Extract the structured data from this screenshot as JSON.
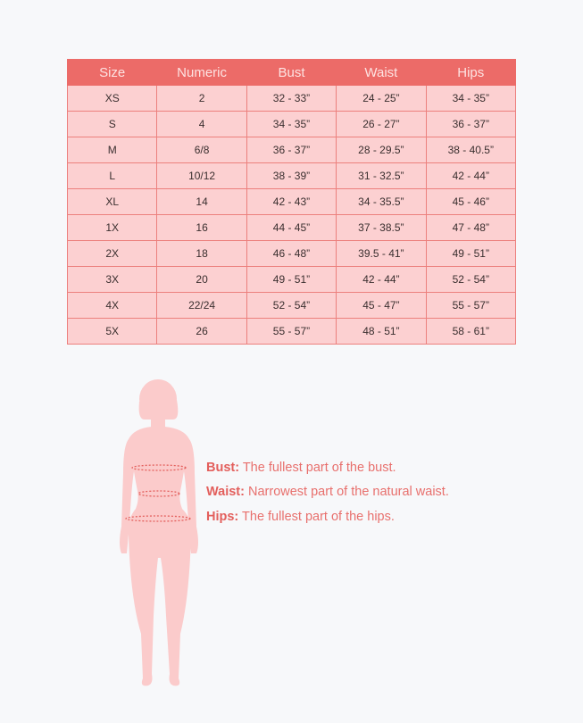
{
  "table": {
    "headers": [
      "Size",
      "Numeric",
      "Bust",
      "Waist",
      "Hips"
    ],
    "rows": [
      [
        "XS",
        "2",
        "32  -  33”",
        "24 - 25”",
        "34 - 35”"
      ],
      [
        "S",
        "4",
        "34 - 35”",
        "26 - 27”",
        "36 - 37”"
      ],
      [
        "M",
        "6/8",
        "36 - 37”",
        "28 - 29.5”",
        "38 - 40.5”"
      ],
      [
        "L",
        "10/12",
        "38 - 39”",
        "31 - 32.5”",
        "42 - 44”"
      ],
      [
        "XL",
        "14",
        "42 - 43”",
        "34 - 35.5”",
        "45 - 46”"
      ],
      [
        "1X",
        "16",
        "44 - 45”",
        "37 - 38.5”",
        "47 - 48”"
      ],
      [
        "2X",
        "18",
        "46 - 48”",
        "39.5 - 41”",
        "49 - 51”"
      ],
      [
        "3X",
        "20",
        "49 - 51”",
        "42 - 44”",
        "52 - 54”"
      ],
      [
        "4X",
        "22/24",
        "52 - 54”",
        "45 - 47”",
        "55 - 57”"
      ],
      [
        "5X",
        "26",
        "55 - 57”",
        "48 - 51”",
        "58 - 61”"
      ]
    ]
  },
  "legend": [
    {
      "term": "Bust:",
      "desc": " The fullest part of the bust."
    },
    {
      "term": "Waist:",
      "desc": " Narrowest part of the natural waist."
    },
    {
      "term": "Hips:",
      "desc": " The fullest part of the hips."
    }
  ],
  "colors": {
    "header": "#ec6b68",
    "cell": "#fcd0d1",
    "silhouette": "#fbcbcb",
    "accent": "#e35f5c"
  }
}
